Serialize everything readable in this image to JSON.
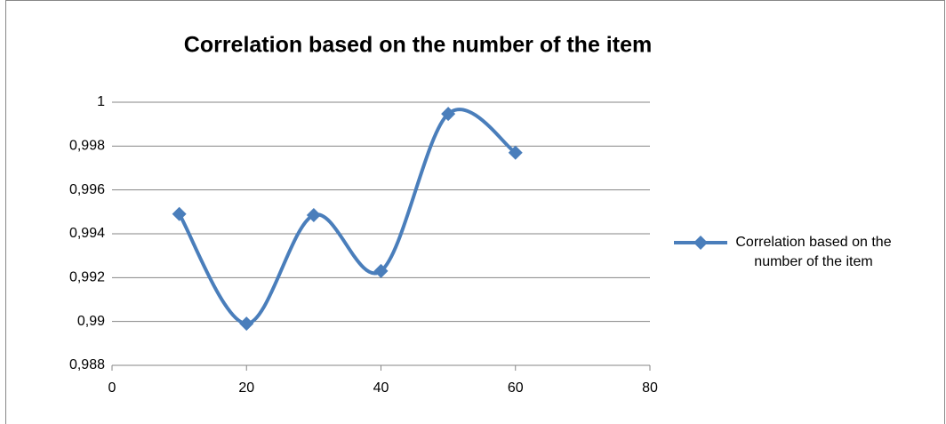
{
  "chart_data": {
    "type": "line",
    "title": "Correlation based on the number of the item",
    "x": [
      10,
      20,
      30,
      40,
      50,
      60
    ],
    "series": [
      {
        "name": "Correlation based on the number of the item",
        "color": "#4a7ebb",
        "values": [
          0.9949,
          0.9899,
          0.99485,
          0.9923,
          0.99947,
          0.9977
        ]
      }
    ],
    "xlim": [
      0,
      80
    ],
    "xticks": [
      0,
      20,
      40,
      60,
      80
    ],
    "ylim": [
      0.988,
      1
    ],
    "yticks": [
      {
        "value": 0.988,
        "label": "0,988"
      },
      {
        "value": 0.99,
        "label": "0,99"
      },
      {
        "value": 0.992,
        "label": "0,992"
      },
      {
        "value": 0.994,
        "label": "0,994"
      },
      {
        "value": 0.996,
        "label": "0,996"
      },
      {
        "value": 0.998,
        "label": "0,998"
      },
      1
    ],
    "grid": true,
    "smooth": true,
    "legend": "right"
  }
}
